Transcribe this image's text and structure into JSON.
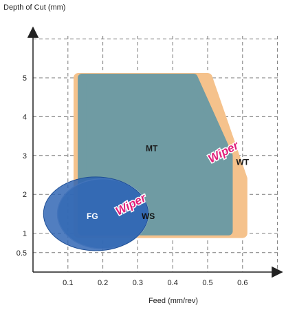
{
  "chart_data": {
    "type": "scatter",
    "title": "",
    "xlabel": "Feed (mm/rev)",
    "ylabel": "Depth of Cut (mm)",
    "xlim": [
      0,
      0.7
    ],
    "ylim": [
      0,
      6
    ],
    "xticks": [
      0.1,
      0.2,
      0.3,
      0.4,
      0.5,
      0.6
    ],
    "xtick_labels": [
      "0.1",
      "0.2",
      "0.3",
      "0.4",
      "0.5",
      "0.6"
    ],
    "yticks": [
      0.5,
      1,
      2,
      3,
      4,
      5
    ],
    "ytick_labels": [
      "0.5",
      "1",
      "2",
      "3",
      "4",
      "5"
    ],
    "grid": true,
    "regions": [
      {
        "name": "WT",
        "label": "WT",
        "label_at": [
          0.6,
          2.85
        ],
        "color": "#f5c28c",
        "outline": [
          [
            0.13,
            5
          ],
          [
            0.5,
            5
          ],
          [
            0.6,
            2.4
          ],
          [
            0.6,
            1
          ],
          [
            0.13,
            1
          ]
        ]
      },
      {
        "name": "MT",
        "label": "MT",
        "label_at": [
          0.34,
          3.2
        ],
        "color": "#6f9ba3",
        "outline": [
          [
            0.14,
            5
          ],
          [
            0.46,
            5
          ],
          [
            0.56,
            3.0
          ],
          [
            0.56,
            1.05
          ],
          [
            0.14,
            1.05
          ]
        ]
      },
      {
        "name": "WS",
        "label": "WS",
        "label_at": [
          0.33,
          1.45
        ],
        "color": "#5e8dc0",
        "ellipse": {
          "cx": 0.2,
          "cy": 1.5,
          "rx": 0.13,
          "ry": 0.9
        }
      },
      {
        "name": "FG",
        "label": "FG",
        "label_at": [
          0.17,
          1.45
        ],
        "color": "#2b62b2",
        "ellipse": {
          "cx": 0.18,
          "cy": 1.5,
          "rx": 0.15,
          "ry": 0.95
        }
      }
    ],
    "annotations": [
      {
        "text": "Wiper",
        "at": [
          0.55,
          3.0
        ],
        "rotation": -28,
        "color": "#e0207a"
      },
      {
        "text": "Wiper",
        "at": [
          0.285,
          1.65
        ],
        "rotation": -28,
        "color": "#e0207a"
      }
    ]
  }
}
